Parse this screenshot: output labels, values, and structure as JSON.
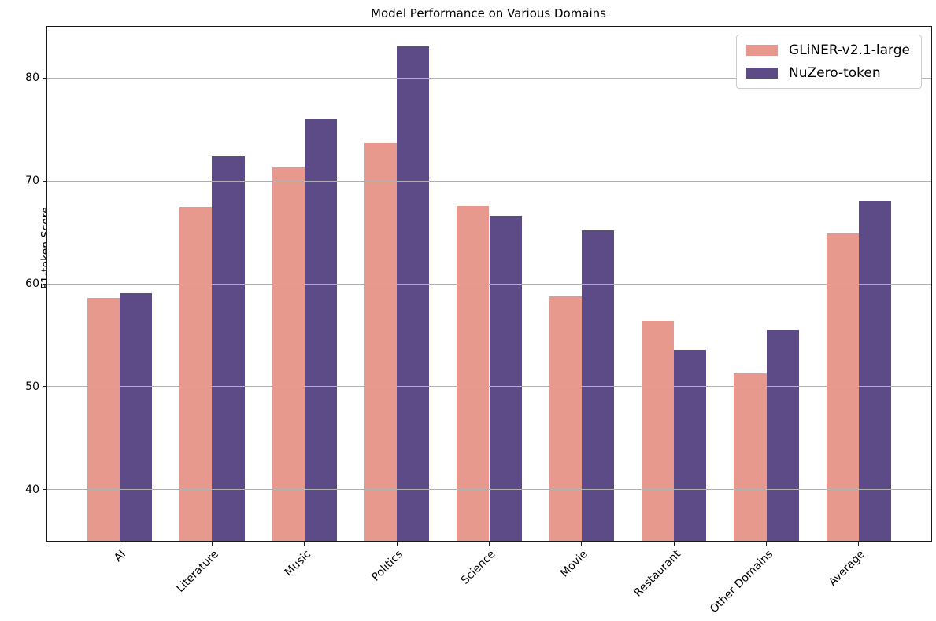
{
  "chart_data": {
    "type": "bar",
    "title": "Model Performance on Various Domains",
    "xlabel": "",
    "ylabel": "F1-token Score",
    "categories": [
      "AI",
      "Literature",
      "Music",
      "Politics",
      "Science",
      "Movie",
      "Restaurant",
      "Other Domains",
      "Average"
    ],
    "series": [
      {
        "name": "GLiNER-v2.1-large",
        "color": "#e6998c",
        "values": [
          58.6,
          67.5,
          71.3,
          73.7,
          67.6,
          58.8,
          56.4,
          51.3,
          64.9
        ]
      },
      {
        "name": "NuZero-token",
        "color": "#5d4b87",
        "values": [
          59.1,
          72.4,
          76.0,
          83.1,
          66.6,
          65.2,
          53.6,
          55.5,
          68.0
        ]
      }
    ],
    "ylim": [
      35,
      85
    ],
    "yticks": [
      40,
      50,
      60,
      70,
      80
    ],
    "grid": true,
    "grid_color": "#b2b2b2",
    "legend_position": "upper right",
    "bar_width": 0.35,
    "x_tick_rotation": 45
  }
}
